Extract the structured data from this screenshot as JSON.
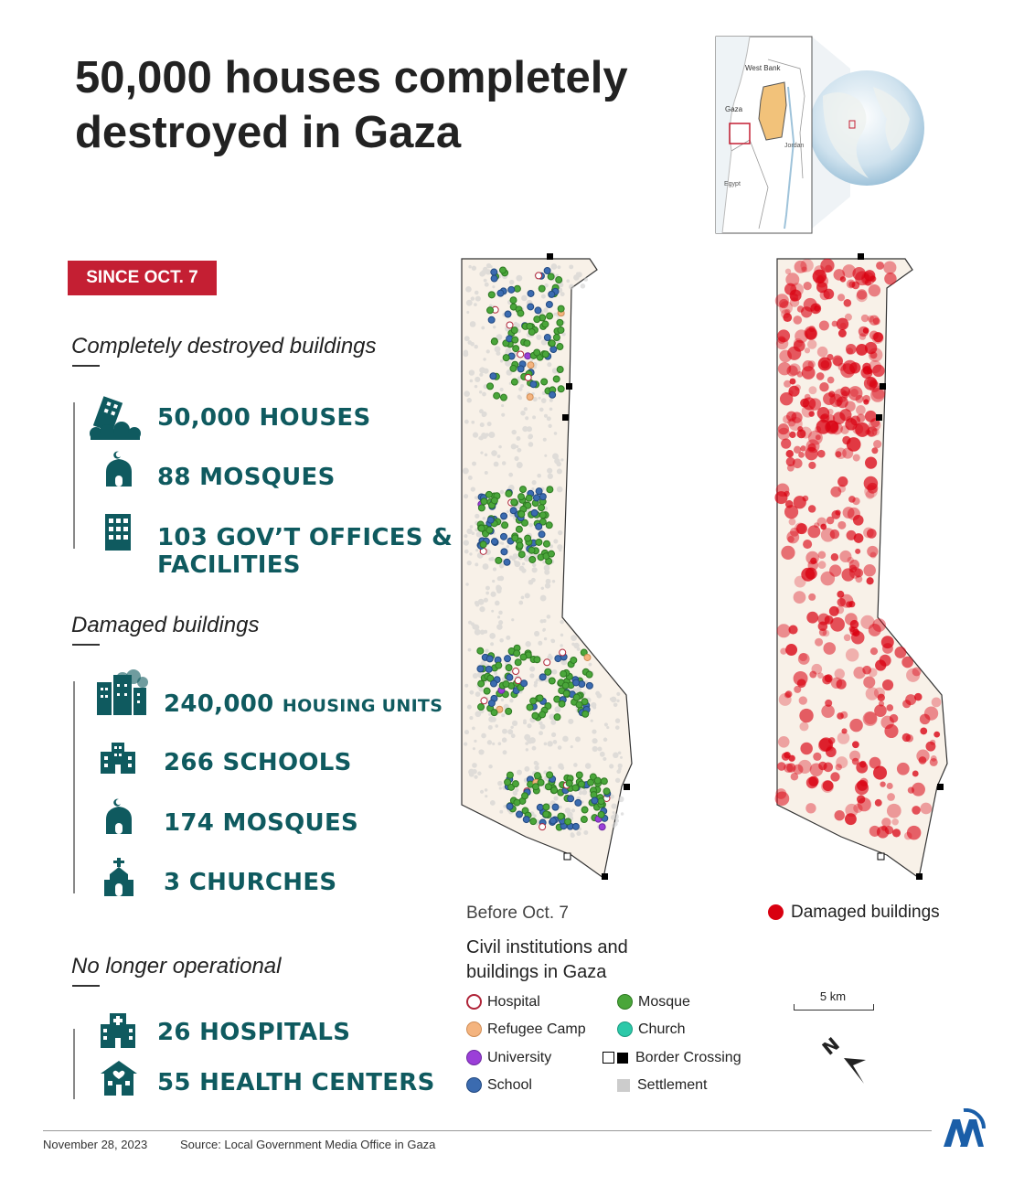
{
  "title": "50,000 houses completely destroyed in Gaza",
  "badge": "SINCE OCT. 7",
  "sections": {
    "destroyed": {
      "heading": "Completely destroyed buildings",
      "items": [
        {
          "icon": "collapsing-building-icon",
          "text": "50,000 HOUSES"
        },
        {
          "icon": "mosque-icon",
          "text": "88 MOSQUES"
        },
        {
          "icon": "office-building-icon",
          "line1": "103 GOV’T OFFICES &",
          "line2": "FACILITIES"
        }
      ]
    },
    "damaged": {
      "heading": "Damaged buildings",
      "items": [
        {
          "icon": "damaged-buildings-icon",
          "big": "240,000",
          "small": "HOUSING UNITS"
        },
        {
          "icon": "school-icon",
          "text": "266 SCHOOLS"
        },
        {
          "icon": "mosque-icon",
          "text": "174 MOSQUES"
        },
        {
          "icon": "church-icon",
          "text": "3 CHURCHES"
        }
      ]
    },
    "not_operational": {
      "heading": "No longer operational",
      "items": [
        {
          "icon": "hospital-icon",
          "text": "26 HOSPITALS"
        },
        {
          "icon": "health-center-icon",
          "text": "55 HEALTH CENTERS"
        }
      ]
    }
  },
  "locator": {
    "labels": {
      "west_bank": "West Bank",
      "gaza": "Gaza",
      "jordan": "Jordan",
      "egypt": "Egypt"
    }
  },
  "legend": {
    "before": "Before Oct. 7",
    "title_line1": "Civil institutions and",
    "title_line2": "buildings in Gaza",
    "items": [
      {
        "label": "Hospital",
        "color": "#ffffff",
        "border": "#b0263a"
      },
      {
        "label": "Refugee Camp",
        "color": "#f4b47f"
      },
      {
        "label": "University",
        "color": "#9b3fd8"
      },
      {
        "label": "School",
        "color": "#3b6bb0"
      },
      {
        "label": "Mosque",
        "color": "#4aa63a"
      },
      {
        "label": "Church",
        "color": "#2cc9a9"
      },
      {
        "label": "Border Crossing",
        "color": "#000000"
      },
      {
        "label": "Settlement",
        "color": "#cccccc"
      }
    ],
    "damaged_label": "Damaged buildings",
    "damaged_color": "#d90010",
    "scale": "5 km",
    "north": "N"
  },
  "footer": {
    "date": "November 28, 2023",
    "source": "Source: Local Government Media Office in Gaza",
    "logo": "AA"
  },
  "colors": {
    "accent": "#0f5a5f",
    "badge": "#c41f33",
    "map_bg": "#f8f1e8"
  }
}
